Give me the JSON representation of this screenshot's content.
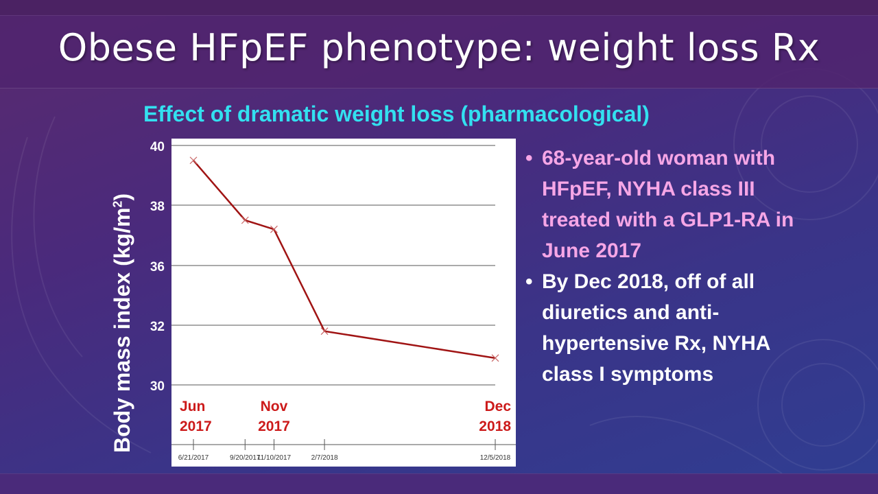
{
  "slide": {
    "title": "Obese HFpEF phenotype: weight loss Rx",
    "subtitle": "Effect of dramatic weight loss (pharmacological)"
  },
  "bullets": [
    {
      "text": "68-year-old woman with HFpEF, NYHA class III treated with a GLP1-RA in June 2017",
      "color": "#f6a6e6"
    },
    {
      "text": "By Dec 2018, off of all diuretics and anti-hypertensive Rx, NYHA class I symptoms",
      "color": "#ffffff"
    }
  ],
  "chart_data": {
    "type": "line",
    "ylabel": "Body mass index (kg/m",
    "ylabel_sup": "2",
    "ylabel_close": ")",
    "yticks": [
      {
        "value": 40,
        "label": "40"
      },
      {
        "value": 38,
        "label": "38"
      },
      {
        "value": 36,
        "label": "36"
      },
      {
        "value": 32,
        "label": "32"
      },
      {
        "value": 30,
        "label": "30"
      }
    ],
    "grid": true,
    "x": [
      "6/21/2017",
      "9/20/2017",
      "11/10/2017",
      "2/7/2018",
      "12/5/2018"
    ],
    "series": [
      {
        "values": [
          39.5,
          37.5,
          37.2,
          31.8,
          30.9
        ],
        "color": "#a01414"
      }
    ],
    "annotations": [
      {
        "line1": "Jun",
        "line2": "2017",
        "at": "6/21/2017",
        "color": "#cc1a1a"
      },
      {
        "line1": "Nov",
        "line2": "2017",
        "at": "11/10/2017",
        "color": "#cc1a1a"
      },
      {
        "line1": "Dec",
        "line2": "2018",
        "at": "12/5/2018",
        "color": "#cc1a1a"
      }
    ]
  }
}
